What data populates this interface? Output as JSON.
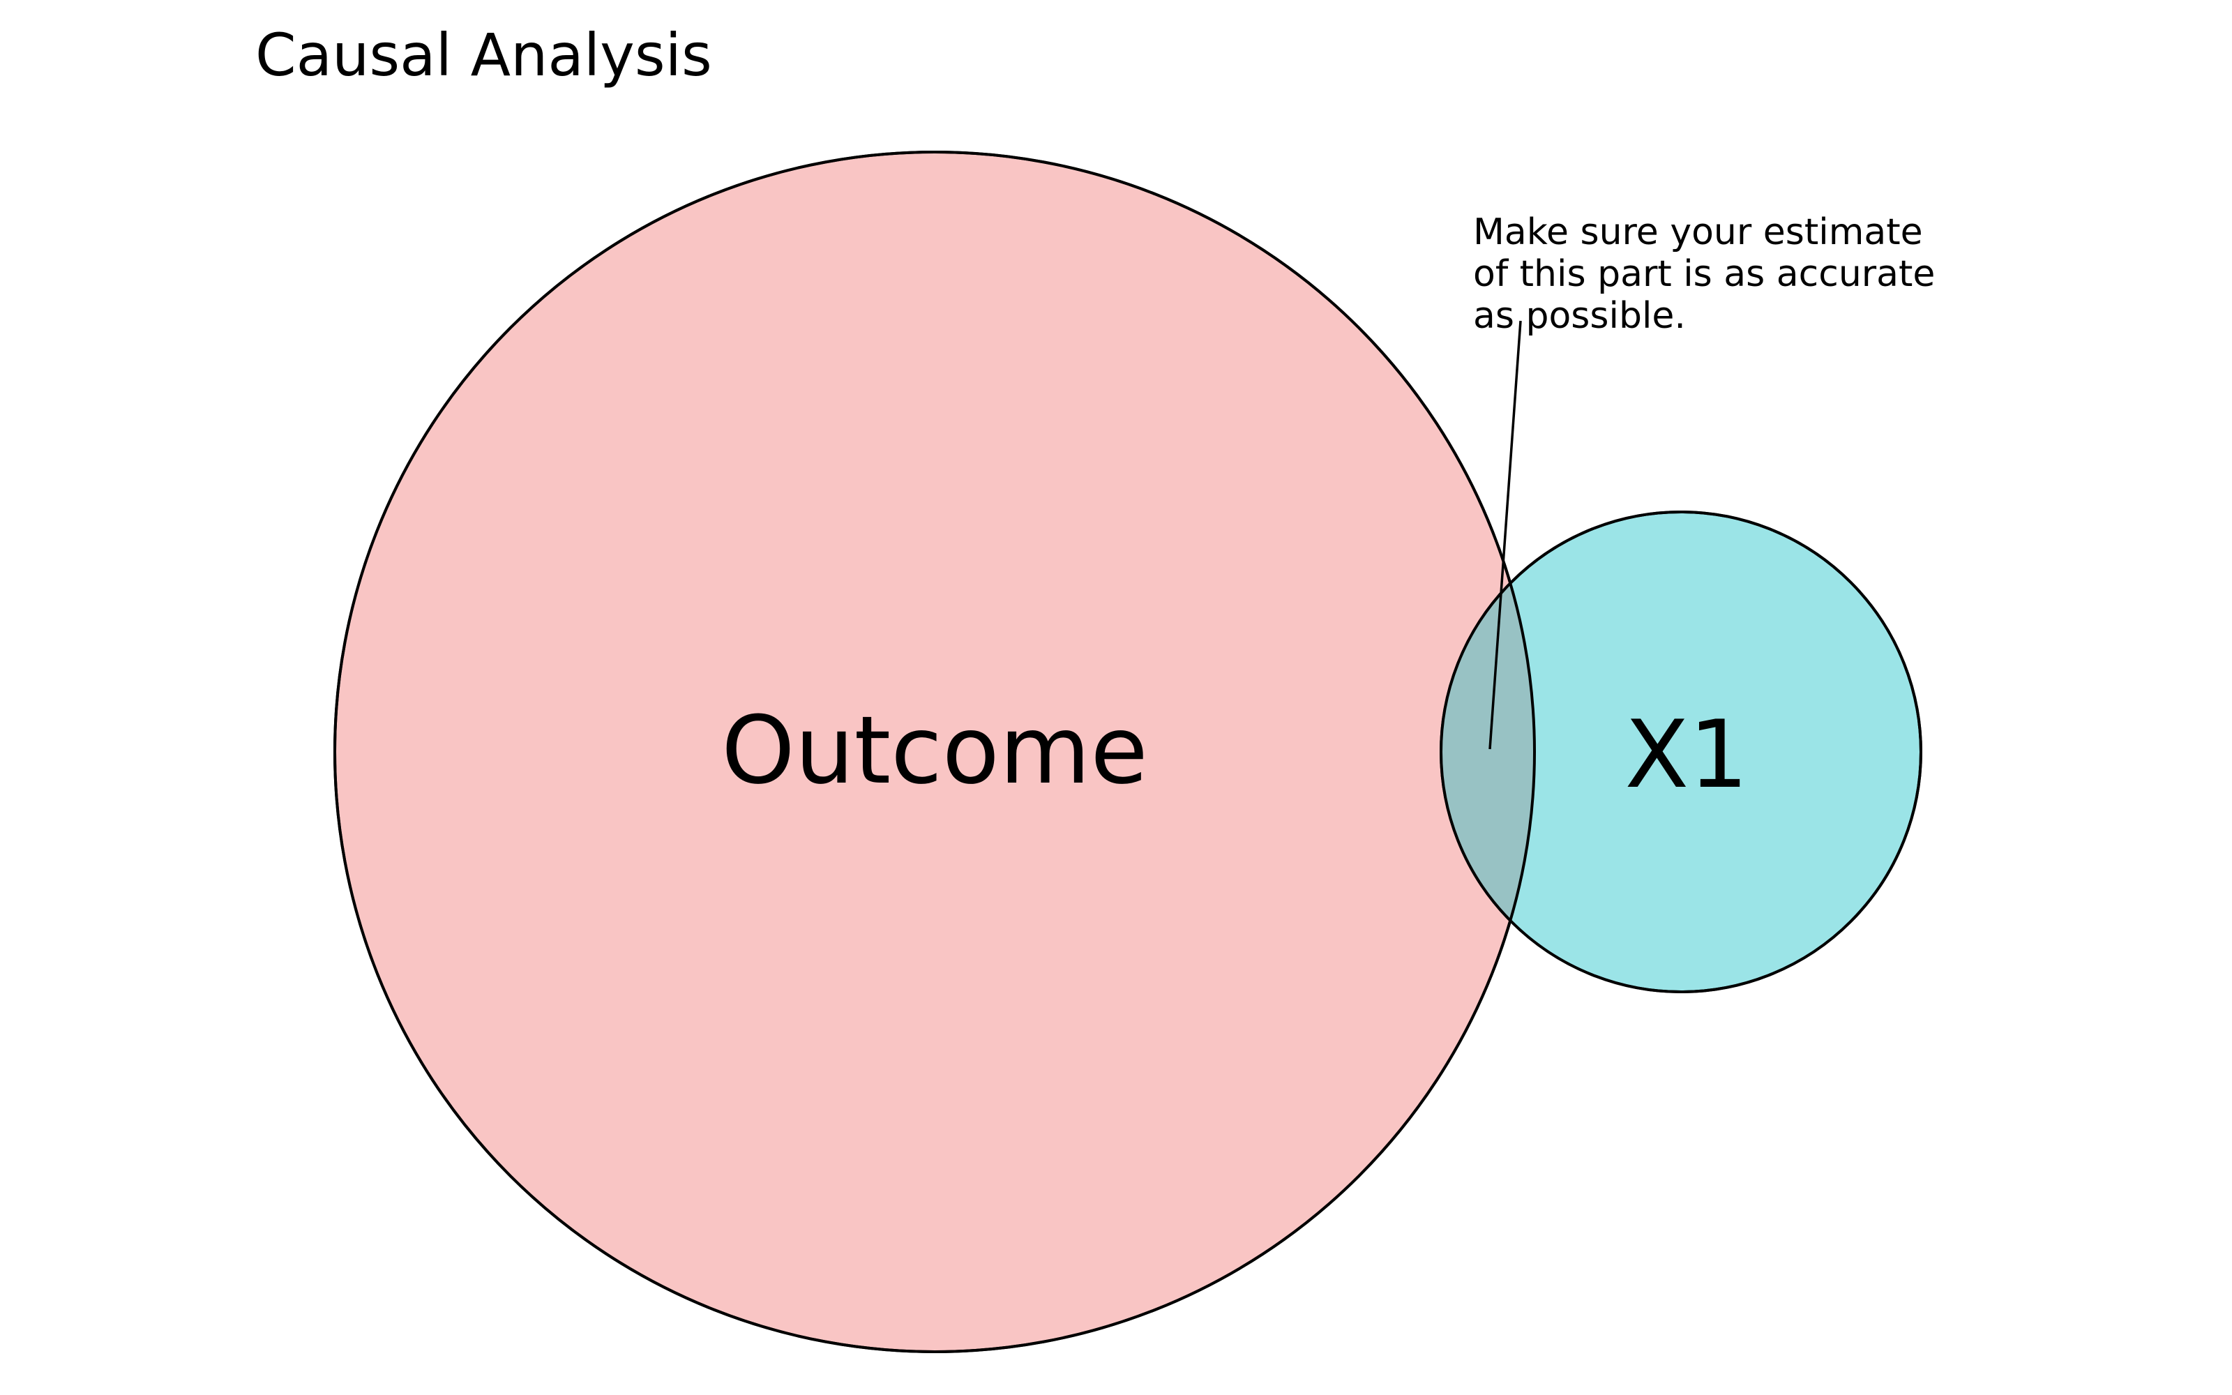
{
  "title": "Causal Analysis",
  "sets": {
    "outcome": {
      "label": "Outcome",
      "fill": "#f9c5c4",
      "stroke": "#000000"
    },
    "x1": {
      "label": "X1",
      "fill": "#9be4e7",
      "stroke": "#000000"
    }
  },
  "overlap": {
    "fill": "#98c2c4"
  },
  "annotation": {
    "lines": [
      "Make sure your estimate",
      "of this part is as accurate",
      "as possible."
    ]
  }
}
